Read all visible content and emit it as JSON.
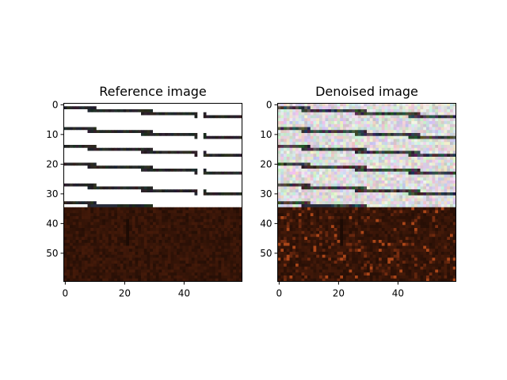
{
  "chart_data": [
    {
      "type": "image",
      "title": "Reference image",
      "xlabel": "",
      "ylabel": "",
      "image_size": [
        60,
        60
      ],
      "xlim": [
        0,
        60
      ],
      "ylim": [
        60,
        0
      ],
      "x_ticks": [
        0,
        20,
        40
      ],
      "y_ticks": [
        0,
        10,
        20,
        30,
        40,
        50
      ],
      "variant": "reference",
      "stripe_rows_left": [
        1,
        8,
        14,
        20,
        27,
        33
      ],
      "stripe_slope": -0.055,
      "ground_start_row": 35,
      "colors": {
        "stripe": "#1a1a1a",
        "ground": "#3a1608",
        "sky": "#ffffff"
      }
    },
    {
      "type": "image",
      "title": "Denoised image",
      "xlabel": "",
      "ylabel": "",
      "image_size": [
        60,
        60
      ],
      "xlim": [
        0,
        60
      ],
      "ylim": [
        60,
        0
      ],
      "x_ticks": [
        0,
        20,
        40
      ],
      "y_ticks": [
        0,
        10,
        20,
        30,
        40,
        50
      ],
      "variant": "denoised",
      "stripe_rows_left": [
        1,
        8,
        14,
        20,
        27,
        33
      ],
      "stripe_slope": -0.055,
      "ground_start_row": 35,
      "colors": {
        "stripe": "#1a1a1a",
        "ground": "#3a1608",
        "sky": "#f6f6f6"
      }
    }
  ]
}
